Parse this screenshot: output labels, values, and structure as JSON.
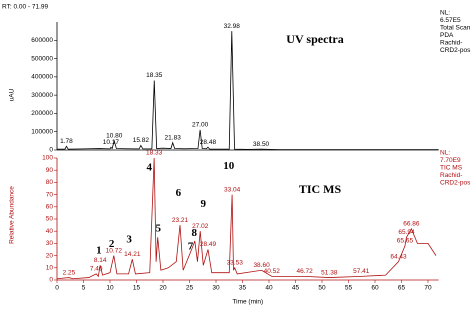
{
  "header": {
    "range": "RT: 0.00 - 71.99"
  },
  "chart_data": [
    {
      "type": "line",
      "title": "UV spectra",
      "y_label": "uAU",
      "color": "#000000",
      "info": [
        "NL:",
        "6.57E5",
        "Total Scan",
        "PDA",
        "Rachid-",
        "CRD2-pos"
      ],
      "xlim": [
        0,
        72
      ],
      "ylim": [
        0,
        700000
      ],
      "yticks": [
        0,
        100000,
        200000,
        300000,
        400000,
        500000,
        600000
      ],
      "x": [
        0,
        1.5,
        1.78,
        2.1,
        5,
        8,
        10,
        10.17,
        10.4,
        10.8,
        11.2,
        13,
        15.5,
        15.82,
        16.2,
        17.9,
        18.35,
        18.8,
        20,
        21.5,
        21.83,
        22.2,
        24,
        26.6,
        27,
        27.4,
        28.2,
        28.48,
        28.8,
        32.5,
        32.98,
        33.5,
        36,
        38.5,
        42,
        72
      ],
      "values": [
        5000,
        5000,
        20000,
        5000,
        6000,
        8000,
        6000,
        15000,
        8000,
        50000,
        8000,
        7000,
        6000,
        25000,
        6000,
        6000,
        380000,
        8000,
        10000,
        8000,
        40000,
        8000,
        7000,
        8000,
        110000,
        8000,
        7000,
        15000,
        5000,
        5000,
        650000,
        5000,
        3000,
        5000,
        2000,
        2000
      ],
      "peaks": [
        {
          "label": "1.78",
          "x": 1.78
        },
        {
          "label": "10.17",
          "x": 10.17
        },
        {
          "label": "10.80",
          "x": 10.8
        },
        {
          "label": "15.82",
          "x": 15.82
        },
        {
          "label": "18.35",
          "x": 18.35
        },
        {
          "label": "21.83",
          "x": 21.83
        },
        {
          "label": "27.00",
          "x": 27
        },
        {
          "label": "28.48",
          "x": 28.48
        },
        {
          "label": "32.98",
          "x": 32.98
        },
        {
          "label": "38.50",
          "x": 38.5
        }
      ]
    },
    {
      "type": "line",
      "title": "TIC MS",
      "y_label": "Relative Abundance",
      "x_label": "Time (min)",
      "color": "#b01010",
      "info": [
        "NL:",
        "7.70E9",
        "TIC MS",
        "Rachid-",
        "CRD2-pos"
      ],
      "xlim": [
        0,
        72
      ],
      "ylim": [
        0,
        100
      ],
      "xticks": [
        0,
        5,
        10,
        15,
        20,
        25,
        30,
        35,
        40,
        45,
        50,
        55,
        60,
        65,
        70
      ],
      "yticks": [
        0,
        10,
        20,
        30,
        40,
        50,
        60,
        70,
        80,
        90,
        100
      ],
      "x": [
        0,
        2.25,
        3,
        6,
        7.4,
        7.8,
        8.14,
        8.6,
        10,
        10.72,
        11.3,
        13.5,
        14.21,
        14.8,
        17.5,
        18.33,
        18.7,
        19,
        19.6,
        21,
        22.5,
        23.21,
        23.8,
        25.4,
        26,
        26.5,
        27.02,
        27.6,
        28.49,
        29.2,
        32.5,
        33.04,
        33.3,
        33.53,
        34,
        38.6,
        40.52,
        46.72,
        51.38,
        57.41,
        62,
        64.43,
        65.65,
        65.94,
        66.86,
        68,
        70,
        71.5
      ],
      "values": [
        1,
        2,
        1,
        2,
        5,
        3,
        12,
        4,
        6,
        20,
        5,
        5,
        17,
        5,
        6,
        100,
        15,
        35,
        8,
        10,
        15,
        45,
        8,
        25,
        32,
        15,
        40,
        12,
        25,
        6,
        6,
        70,
        8,
        10,
        5,
        8,
        3,
        3,
        2,
        3,
        4,
        15,
        28,
        35,
        42,
        30,
        30,
        20
      ],
      "peaks": [
        {
          "label": "2.25",
          "x": 2.25
        },
        {
          "label": "7.40",
          "x": 7.4
        },
        {
          "label": "8.14",
          "x": 8.14
        },
        {
          "label": "10.72",
          "x": 10.72
        },
        {
          "label": "14.21",
          "x": 14.21
        },
        {
          "label": "18.33",
          "x": 18.33
        },
        {
          "label": "23.21",
          "x": 23.21
        },
        {
          "label": "27.02",
          "x": 27.02
        },
        {
          "label": "28.49",
          "x": 28.49
        },
        {
          "label": "33.04",
          "x": 33.04
        },
        {
          "label": "33.53",
          "x": 33.53
        },
        {
          "label": "38.60",
          "x": 38.6
        },
        {
          "label": "40.52",
          "x": 40.52
        },
        {
          "label": "46.72",
          "x": 46.72
        },
        {
          "label": "51.38",
          "x": 51.38
        },
        {
          "label": "57.41",
          "x": 57.41
        },
        {
          "label": "64.43",
          "x": 64.43
        },
        {
          "label": "65.65",
          "x": 65.65
        },
        {
          "label": "65.94",
          "x": 65.94
        },
        {
          "label": "66.86",
          "x": 66.86
        }
      ],
      "compounds": [
        {
          "number": 1,
          "rt": 7.9,
          "value": 24
        },
        {
          "number": 2,
          "rt": 10.3,
          "value": 29
        },
        {
          "number": 3,
          "rt": 13.6,
          "value": 33
        },
        {
          "number": 4,
          "rt": 17.4,
          "value": 92
        },
        {
          "number": 5,
          "rt": 19.1,
          "value": 42
        },
        {
          "number": 6,
          "rt": 22.9,
          "value": 71
        },
        {
          "number": 7,
          "rt": 25.2,
          "value": 27
        },
        {
          "number": 8,
          "rt": 25.9,
          "value": 38
        },
        {
          "number": 9,
          "rt": 27.6,
          "value": 62
        },
        {
          "number": 10,
          "rt": 32.4,
          "value": 93
        }
      ]
    }
  ]
}
